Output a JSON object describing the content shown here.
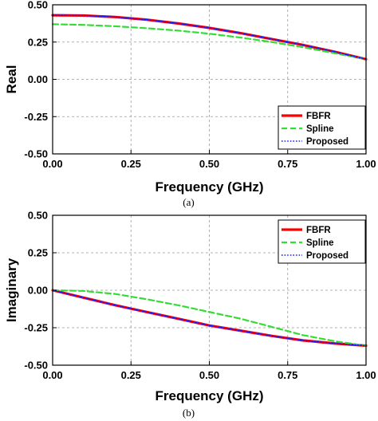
{
  "chart_data": [
    {
      "type": "line",
      "caption": "(a)",
      "xlabel": "Frequency (GHz)",
      "ylabel": "Real",
      "xlim": [
        0,
        1
      ],
      "ylim": [
        -0.5,
        0.5
      ],
      "x_ticks": [
        "0.00",
        "0.25",
        "0.50",
        "0.75",
        "1.00"
      ],
      "y_ticks": [
        "-0.50",
        "-0.25",
        "0.00",
        "0.25",
        "0.50"
      ],
      "grid": true,
      "legend_position": "bottom-right",
      "x": [
        0,
        0.1,
        0.2,
        0.3,
        0.4,
        0.5,
        0.6,
        0.7,
        0.8,
        0.9,
        1.0
      ],
      "series": [
        {
          "name": "FBFR",
          "color": "#ff0000",
          "style": "solid",
          "values": [
            0.43,
            0.428,
            0.418,
            0.4,
            0.375,
            0.345,
            0.31,
            0.27,
            0.23,
            0.185,
            0.135
          ]
        },
        {
          "name": "Spline",
          "color": "#33dd33",
          "style": "dashed",
          "values": [
            0.37,
            0.365,
            0.356,
            0.343,
            0.327,
            0.306,
            0.28,
            0.25,
            0.215,
            0.175,
            0.135
          ]
        },
        {
          "name": "Proposed",
          "color": "#1a1aff",
          "style": "dotted",
          "values": [
            0.43,
            0.428,
            0.418,
            0.4,
            0.375,
            0.345,
            0.31,
            0.27,
            0.23,
            0.185,
            0.135
          ]
        }
      ]
    },
    {
      "type": "line",
      "caption": "(b)",
      "xlabel": "Frequency (GHz)",
      "ylabel": "Imaginary",
      "xlim": [
        0,
        1
      ],
      "ylim": [
        -0.5,
        0.5
      ],
      "x_ticks": [
        "0.00",
        "0.25",
        "0.50",
        "0.75",
        "1.00"
      ],
      "y_ticks": [
        "-0.50",
        "-0.25",
        "0.00",
        "0.25",
        "0.50"
      ],
      "grid": true,
      "legend_position": "top-right",
      "x": [
        0,
        0.1,
        0.2,
        0.3,
        0.4,
        0.5,
        0.6,
        0.7,
        0.8,
        0.9,
        1.0
      ],
      "series": [
        {
          "name": "FBFR",
          "color": "#ff0000",
          "style": "solid",
          "values": [
            0.0,
            -0.05,
            -0.1,
            -0.145,
            -0.19,
            -0.235,
            -0.27,
            -0.305,
            -0.335,
            -0.355,
            -0.37
          ]
        },
        {
          "name": "Spline",
          "color": "#33dd33",
          "style": "dashed",
          "values": [
            0.0,
            -0.005,
            -0.025,
            -0.06,
            -0.1,
            -0.145,
            -0.19,
            -0.245,
            -0.3,
            -0.34,
            -0.37
          ]
        },
        {
          "name": "Proposed",
          "color": "#1a1aff",
          "style": "dotted",
          "values": [
            0.0,
            -0.05,
            -0.1,
            -0.145,
            -0.19,
            -0.235,
            -0.27,
            -0.305,
            -0.335,
            -0.355,
            -0.37
          ]
        }
      ]
    }
  ]
}
